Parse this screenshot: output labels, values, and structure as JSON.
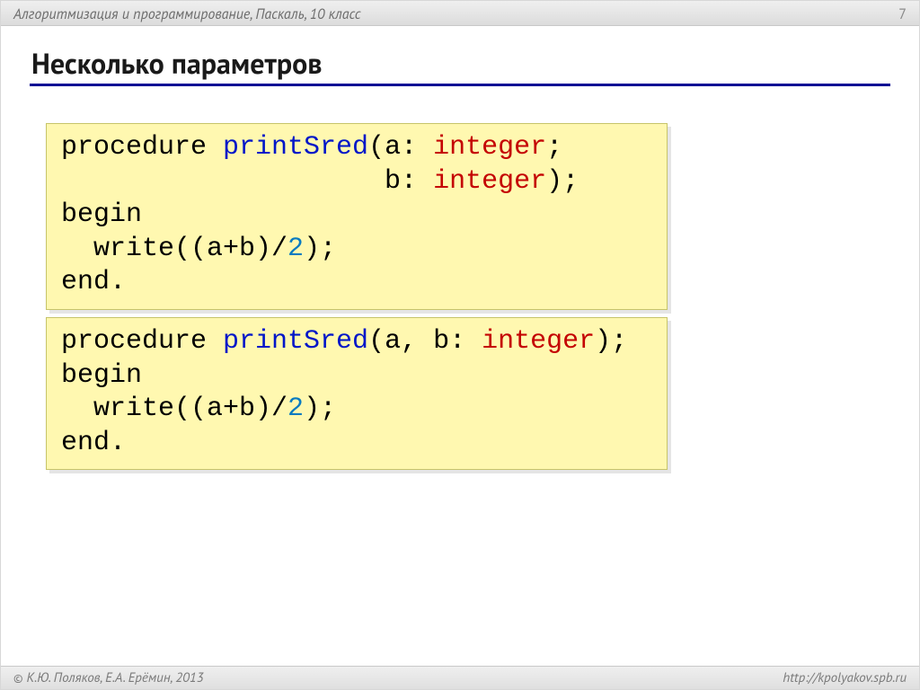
{
  "colors": {
    "rule": "#0a0694",
    "code_bg": "#fff8b0",
    "code_border": "#c7c46a",
    "code_shadow": "rgba(0,0,0,.10)",
    "name": "#0016c8",
    "type": "#c40303",
    "number": "#0a7bc0",
    "text": "#000000",
    "bar_bg_top": "#efefef",
    "bar_bg_bot": "#dcdcdc",
    "bar_text": "#6d6d6d"
  },
  "header": {
    "course": "Алгоритмизация и программирование, Паскаль, 10 класс",
    "page": "7"
  },
  "title": "Несколько параметров",
  "code1": {
    "tokens": [
      {
        "t": "procedure "
      },
      {
        "t": "printSred",
        "cls": "c-name"
      },
      {
        "t": "(a: "
      },
      {
        "t": "integer",
        "cls": "c-type"
      },
      {
        "t": ";\n"
      },
      {
        "t": "                    b: "
      },
      {
        "t": "integer",
        "cls": "c-type"
      },
      {
        "t": ");\n"
      },
      {
        "t": "begin\n"
      },
      {
        "t": "  write((a+b)/"
      },
      {
        "t": "2",
        "cls": "c-num"
      },
      {
        "t": ");\n"
      },
      {
        "t": "end."
      }
    ]
  },
  "code2": {
    "tokens": [
      {
        "t": "procedure "
      },
      {
        "t": "printSred",
        "cls": "c-name"
      },
      {
        "t": "(a, b: "
      },
      {
        "t": "integer",
        "cls": "c-type"
      },
      {
        "t": ");\n"
      },
      {
        "t": "begin\n"
      },
      {
        "t": "  write((a+b)/"
      },
      {
        "t": "2",
        "cls": "c-num"
      },
      {
        "t": ");\n"
      },
      {
        "t": "end."
      }
    ]
  },
  "footer": {
    "copyright": "К.Ю. Поляков, Е.А. Ерёмин, 2013",
    "url": "http://kpolyakov.spb.ru"
  }
}
